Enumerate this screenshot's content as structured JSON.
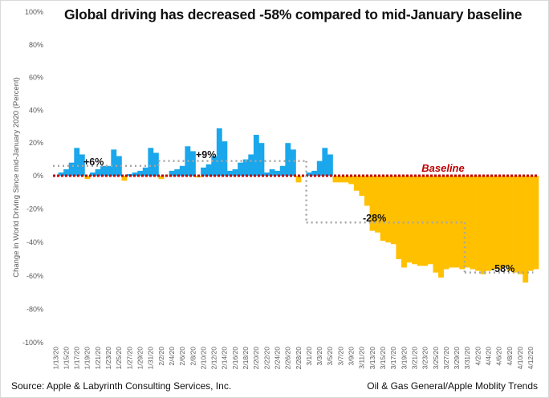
{
  "chart_data": {
    "type": "bar",
    "title": "Global driving has decreased -58% compared to mid-January baseline",
    "xlabel": "",
    "ylabel": "Change in World Driving Since mid-January 2020 (Percent)",
    "ylim": [
      -100,
      100
    ],
    "yticks": [
      100,
      80,
      60,
      40,
      20,
      0,
      -20,
      -40,
      -60,
      -80,
      -100
    ],
    "ytick_labels": [
      "100%",
      "80%",
      "60%",
      "40%",
      "20%",
      "0%",
      "-20%",
      "-40%",
      "-60%",
      "-80%",
      "-100%"
    ],
    "start_date": "1/13/20",
    "xtick_labels": [
      "1/13/20",
      "1/15/20",
      "1/17/20",
      "1/19/20",
      "1/21/20",
      "1/23/20",
      "1/25/20",
      "1/27/20",
      "1/29/20",
      "1/31/20",
      "2/2/20",
      "2/4/20",
      "2/6/20",
      "2/8/20",
      "2/10/20",
      "2/12/20",
      "2/14/20",
      "2/16/20",
      "2/18/20",
      "2/20/20",
      "2/22/20",
      "2/24/20",
      "2/26/20",
      "2/28/20",
      "3/1/20",
      "3/3/20",
      "3/5/20",
      "3/7/20",
      "3/9/20",
      "3/11/20",
      "3/13/20",
      "3/15/20",
      "3/17/20",
      "3/19/20",
      "3/21/20",
      "3/23/20",
      "3/25/20",
      "3/27/20",
      "3/29/20",
      "3/31/20",
      "4/2/20",
      "4/4/20",
      "4/6/20",
      "4/8/20",
      "4/10/20",
      "4/12/20"
    ],
    "values": [
      0,
      2,
      4,
      8,
      17,
      13,
      -2,
      2,
      4,
      6,
      6,
      16,
      12,
      -3,
      1,
      2,
      3,
      5,
      17,
      14,
      -2,
      0,
      3,
      4,
      6,
      18,
      15,
      -1,
      5,
      7,
      12,
      29,
      21,
      3,
      4,
      8,
      10,
      13,
      25,
      20,
      2,
      4,
      3,
      6,
      20,
      16,
      -4,
      0,
      2,
      3,
      9,
      17,
      13,
      -4,
      -4,
      -4,
      -5,
      -9,
      -12,
      -18,
      -33,
      -34,
      -39,
      -40,
      -41,
      -50,
      -55,
      -52,
      -53,
      -54,
      -54,
      -53,
      -58,
      -61,
      -56,
      -55,
      -55,
      -56,
      -55,
      -56,
      -57,
      -59,
      -57,
      -56,
      -56,
      -55,
      -57,
      -58,
      -59,
      -64,
      -57,
      -56
    ],
    "positive_color": "#1aa7ec",
    "negative_color": "#ffc000",
    "baseline": {
      "label": "Baseline",
      "value": 0,
      "color": "#c00000"
    },
    "averages": [
      {
        "label": "+6%",
        "value": 6,
        "from": "1/13/20",
        "to": "2/2/20"
      },
      {
        "label": "+9%",
        "value": 9,
        "from": "2/2/20",
        "to": "3/1/20"
      },
      {
        "label": "-28%",
        "value": -28,
        "from": "3/1/20",
        "to": "3/31/20"
      },
      {
        "label": "-58%",
        "value": -58,
        "from": "3/31/20",
        "to": "4/13/20"
      }
    ],
    "average_line_color": "#a6a6a6",
    "grid": false,
    "legend": "none"
  },
  "footer": {
    "source": "Source: Apple & Labyrinth Consulting Services, Inc.",
    "credit": "Oil & Gas General/Apple Moblity Trends"
  }
}
